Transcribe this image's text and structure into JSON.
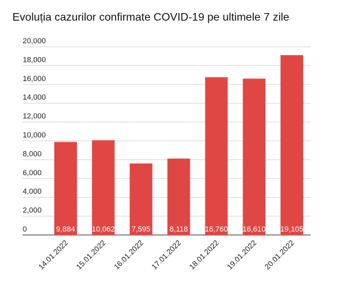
{
  "chart_data": {
    "type": "bar",
    "title": "Evoluția cazurilor confirmate COVID-19 pe ultimele 7 zile",
    "categories": [
      "14.01.2022",
      "15.01.2022",
      "16.01.2022",
      "17.01.2022",
      "18.01.2022",
      "19.01.2022",
      "20.01.2022"
    ],
    "values": [
      9884,
      10062,
      7595,
      8118,
      16760,
      16610,
      19105
    ],
    "value_labels": [
      "9,884",
      "10,062",
      "7,595",
      "8,118",
      "16,760",
      "16,610",
      "19,105"
    ],
    "color": "#e04643",
    "ylim": [
      0,
      20000
    ],
    "yticks": [
      0,
      {
        "value": 2000,
        "label": "2,000"
      },
      {
        "value": 4000,
        "label": "4,000"
      },
      {
        "value": 6000,
        "label": "6,000"
      },
      {
        "value": 8000,
        "label": "8,000"
      },
      {
        "value": 10000,
        "label": "10,000"
      },
      {
        "value": 12000,
        "label": "12,000"
      },
      {
        "value": 14000,
        "label": "14,000"
      },
      {
        "value": 16000,
        "label": "16,000"
      },
      {
        "value": 18000,
        "label": "18,000"
      },
      {
        "value": 20000,
        "label": "20,000"
      }
    ],
    "grid": true
  }
}
